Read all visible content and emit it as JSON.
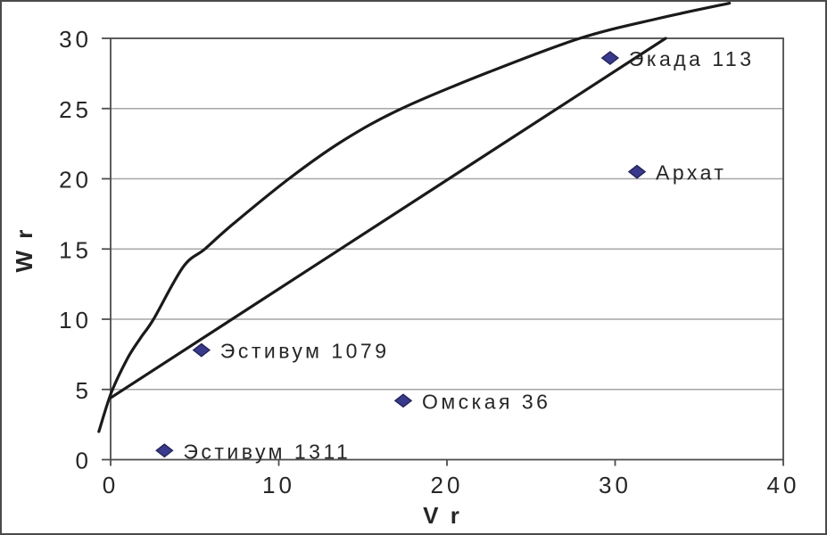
{
  "chart_data": {
    "type": "scatter",
    "title": "",
    "xlabel": "V r",
    "ylabel": "W r",
    "xlim": [
      0,
      40
    ],
    "ylim": [
      0,
      30
    ],
    "x_ticks": [
      0,
      10,
      20,
      30,
      40
    ],
    "y_ticks": [
      0,
      5,
      10,
      15,
      20,
      25,
      30
    ],
    "grid": "horizontal-only",
    "legend": "none",
    "points": [
      {
        "label": "Экада 113",
        "x": 29.7,
        "y": 28.6
      },
      {
        "label": "Архат",
        "x": 31.3,
        "y": 20.5
      },
      {
        "label": "Эстивум 1079",
        "x": 5.4,
        "y": 7.8
      },
      {
        "label": "Омская 36",
        "x": 17.4,
        "y": 4.2
      },
      {
        "label": "Эстивум 1311",
        "x": 3.2,
        "y": 0.65
      }
    ],
    "curves": [
      {
        "name": "upper-curve",
        "type": "smooth",
        "points": [
          [
            -0.7,
            2.0
          ],
          [
            0.05,
            4.8
          ],
          [
            1.0,
            7.2
          ],
          [
            1.8,
            8.7
          ],
          [
            2.55,
            10.0
          ],
          [
            4.3,
            13.7
          ],
          [
            5.6,
            15.0
          ],
          [
            7.3,
            16.8
          ],
          [
            10.6,
            20.0
          ],
          [
            13.8,
            22.7
          ],
          [
            17.3,
            25.0
          ],
          [
            22.5,
            27.6
          ],
          [
            27.9,
            30.0
          ],
          [
            32.5,
            31.4
          ],
          [
            36.8,
            32.5
          ]
        ]
      },
      {
        "name": "lower-line",
        "type": "line",
        "points": [
          [
            0,
            4.4
          ],
          [
            33,
            30.0
          ]
        ]
      }
    ],
    "colors": {
      "marker_fill": "#3A3A8C",
      "marker_stroke": "#26265E",
      "curve": "#1A1A1A",
      "grid": "#A6A6A6",
      "axis_box": "#4d4d4d",
      "text": "#262626",
      "background": "#FFFFFF",
      "frame_border": "#4a4a4a"
    }
  }
}
